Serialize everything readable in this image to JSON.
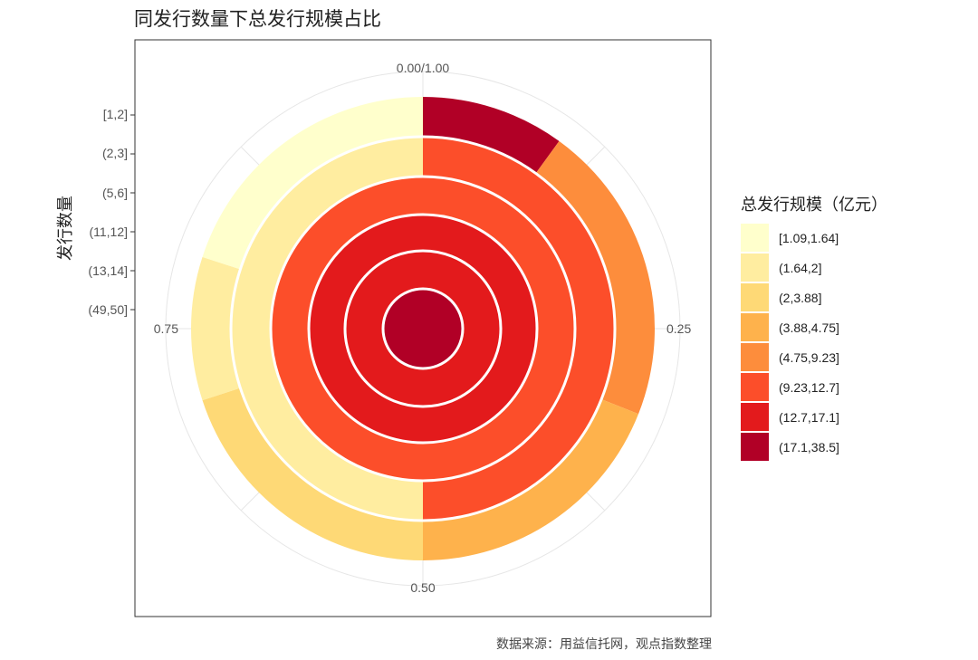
{
  "chart_data": {
    "type": "polar-stacked-bar",
    "title": "同发行数量下总发行规模占比",
    "ylabel": "发行数量",
    "categories": [
      "[1,2]",
      "(2,3]",
      "(5,6]",
      "(11,12]",
      "(13,14]",
      "(49,50]"
    ],
    "angle_ticks": [
      "0.00/1.00",
      "0.25",
      "0.50",
      "0.75"
    ],
    "legend": {
      "title": "总发行规模（亿元）",
      "placement": "right",
      "items": [
        {
          "label": "[1.09,1.64]",
          "color": "#FFFFCC"
        },
        {
          "label": "(1.64,2]",
          "color": "#FFEDA0"
        },
        {
          "label": "(2,3.88]",
          "color": "#FED976"
        },
        {
          "label": "(3.88,4.75]",
          "color": "#FEB24C"
        },
        {
          "label": "(4.75,9.23]",
          "color": "#FD8D3C"
        },
        {
          "label": "(9.23,12.7]",
          "color": "#FC4E2A"
        },
        {
          "label": "(12.7,17.1]",
          "color": "#E31A1C"
        },
        {
          "label": "(17.1,38.5]",
          "color": "#B10026"
        }
      ]
    },
    "rings": [
      {
        "category": "[1,2]",
        "segments": [
          {
            "bin": "(17.1,38.5]",
            "share": 0.1
          },
          {
            "bin": "(4.75,9.23]",
            "share": 0.21
          },
          {
            "bin": "(3.88,4.75]",
            "share": 0.19
          },
          {
            "bin": "(2,3.88]",
            "share": 0.2
          },
          {
            "bin": "(1.64,2]",
            "share": 0.1
          },
          {
            "bin": "[1.09,1.64]",
            "share": 0.2
          }
        ]
      },
      {
        "category": "(2,3]",
        "segments": [
          {
            "bin": "(9.23,12.7]",
            "share": 0.5
          },
          {
            "bin": "(1.64,2]",
            "share": 0.5
          }
        ]
      },
      {
        "category": "(5,6]",
        "segments": [
          {
            "bin": "(9.23,12.7]",
            "share": 1.0
          }
        ]
      },
      {
        "category": "(11,12]",
        "segments": [
          {
            "bin": "(12.7,17.1]",
            "share": 1.0
          }
        ]
      },
      {
        "category": "(13,14]",
        "segments": [
          {
            "bin": "(12.7,17.1]",
            "share": 1.0
          }
        ]
      },
      {
        "category": "(49,50]",
        "segments": [
          {
            "bin": "(17.1,38.5]",
            "share": 1.0
          }
        ]
      }
    ],
    "grid": true
  },
  "caption": "数据来源：用益信托网，观点指数整理"
}
